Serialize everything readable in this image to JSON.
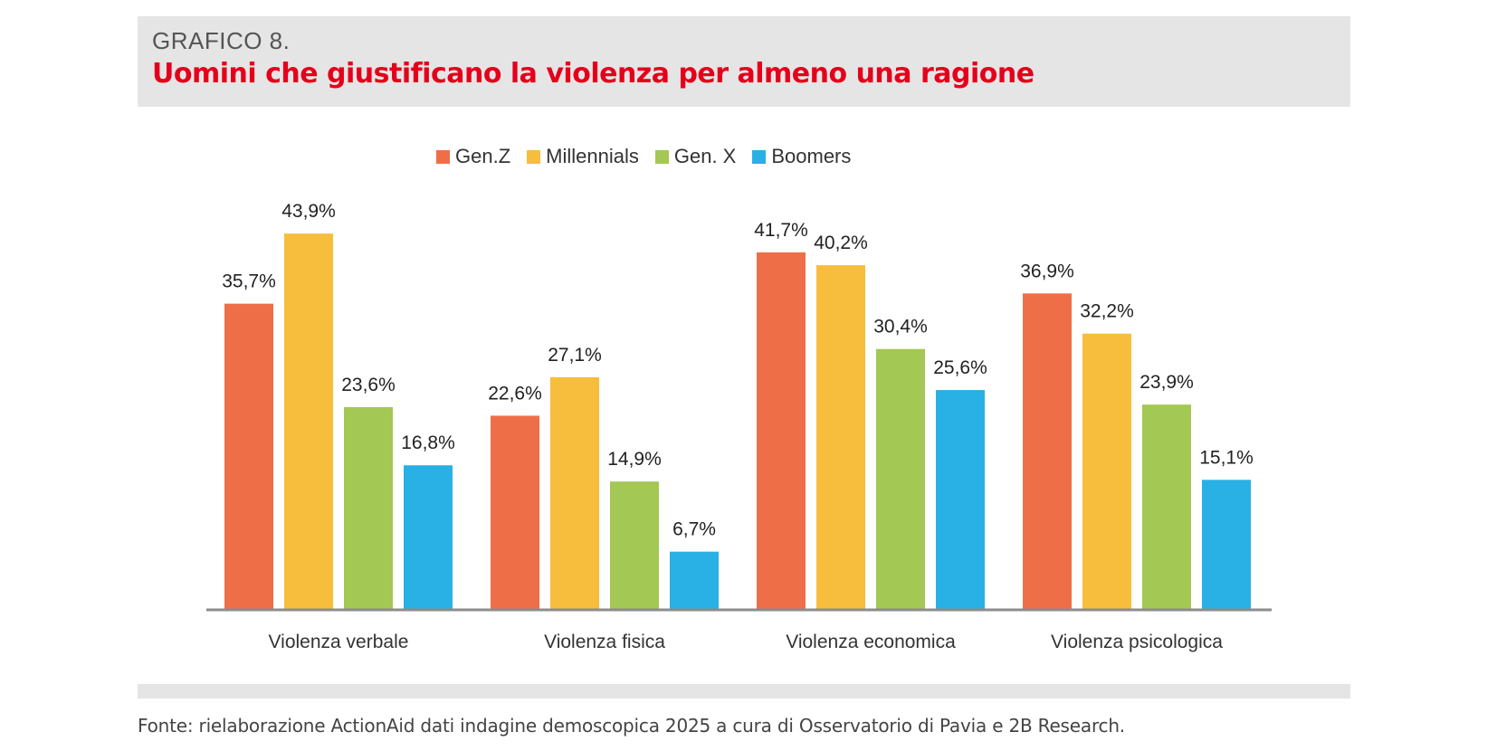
{
  "header": {
    "label": "GRAFICO 8.",
    "title": "Uomini che giustificano la violenza per almeno una ragione"
  },
  "footer": {
    "source": "Fonte: rielaborazione ActionAid dati indagine demoscopica 2025 a cura di Osservatorio di Pavia e 2B Research."
  },
  "chart_data": {
    "type": "bar",
    "title": "Uomini che giustificano la violenza per almeno una ragione",
    "xlabel": "",
    "ylabel": "",
    "ylim": [
      0,
      50
    ],
    "grid": false,
    "legend_position": "top",
    "categories": [
      "Violenza verbale",
      "Violenza fisica",
      "Violenza economica",
      "Violenza psicologica"
    ],
    "series": [
      {
        "name": "Gen.Z",
        "color": "#ee6f47",
        "values": [
          35.7,
          22.6,
          41.7,
          36.9
        ],
        "labels": [
          "35,7%",
          "22,6%",
          "41,7%",
          "36,9%"
        ]
      },
      {
        "name": "Millennials",
        "color": "#f7bd3c",
        "values": [
          43.9,
          27.1,
          40.2,
          32.2
        ],
        "labels": [
          "43,9%",
          "27,1%",
          "40,2%",
          "32,2%"
        ]
      },
      {
        "name": "Gen. X",
        "color": "#a3c853",
        "values": [
          23.6,
          14.9,
          30.4,
          23.9
        ],
        "labels": [
          "23,6%",
          "14,9%",
          "30,4%",
          "23,9%"
        ]
      },
      {
        "name": "Boomers",
        "color": "#29b0e4",
        "values": [
          16.8,
          6.7,
          25.6,
          15.1
        ],
        "labels": [
          "16,8%",
          "6,7%",
          "25,6%",
          "15,1%"
        ]
      }
    ]
  }
}
